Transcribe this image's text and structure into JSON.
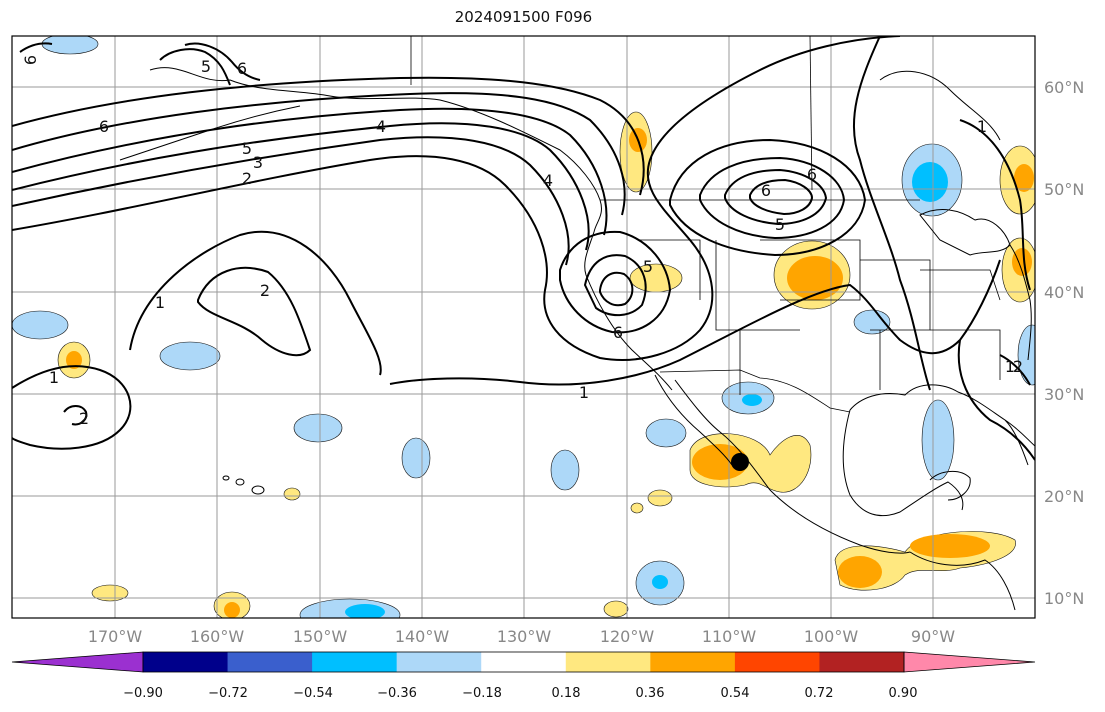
{
  "title": "2024091500 F096",
  "lon_ticks": [
    "170°W",
    "160°W",
    "150°W",
    "140°W",
    "130°W",
    "120°W",
    "110°W",
    "100°W",
    "90°W"
  ],
  "lat_ticks": [
    "60°N",
    "50°N",
    "40°N",
    "30°N",
    "20°N",
    "10°N"
  ],
  "contour_labels": [
    "6",
    "5",
    "6",
    "6",
    "5",
    "4",
    "3",
    "2",
    "2",
    "1",
    "1",
    "2",
    "1",
    "6",
    "4",
    "5",
    "6",
    "5",
    "6",
    "1",
    "1",
    "2"
  ],
  "colorbar": {
    "ticks": [
      "−0.90",
      "−0.72",
      "−0.54",
      "−0.36",
      "−0.18",
      "0.18",
      "0.36",
      "0.54",
      "0.72",
      "0.90"
    ],
    "colors": [
      "#9b30d0",
      "#00008b",
      "#3a5fcd",
      "#00bfff",
      "#add8f8",
      "#ffffff",
      "#ffe880",
      "#ffa500",
      "#ff4500",
      "#b22222",
      "#ff88aa"
    ]
  },
  "marker": "storm-center-dot"
}
